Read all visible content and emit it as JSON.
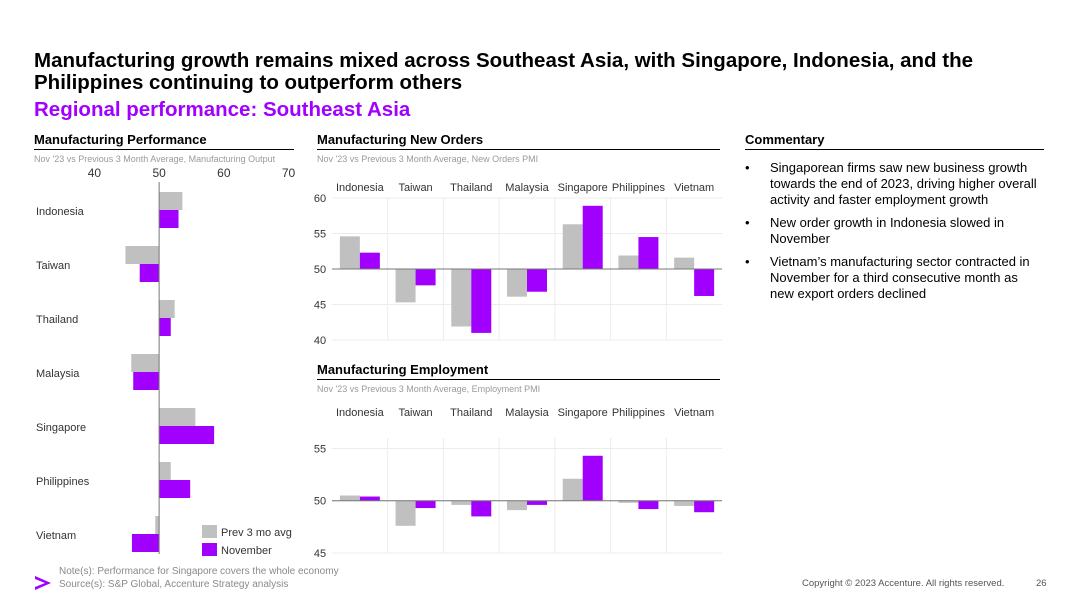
{
  "header": {
    "title": "Manufacturing growth remains mixed across Southeast Asia, with Singapore, Indonesia, and the Philippines continuing to outperform others",
    "subtitle": "Regional performance: Southeast Asia"
  },
  "colors": {
    "accent": "#a100ff",
    "prev": "#c0c0c0",
    "nov": "#a100ff"
  },
  "chart_data": [
    {
      "id": "performance",
      "type": "bar",
      "orientation": "horizontal",
      "title": "Manufacturing Performance",
      "subtitle": "Nov '23 vs Previous 3 Month Average, Manufacturing Output",
      "categories": [
        "Indonesia",
        "Taiwan",
        "Thailand",
        "Malaysia",
        "Singapore",
        "Philippines",
        "Vietnam"
      ],
      "baseline": 50,
      "xlim": [
        37,
        71
      ],
      "ticks": [
        40,
        50,
        60,
        70
      ],
      "series": [
        {
          "name": "Prev 3 mo avg",
          "values": [
            53.6,
            44.8,
            52.4,
            45.7,
            55.6,
            51.8,
            49.4
          ]
        },
        {
          "name": "November",
          "values": [
            53.0,
            47.0,
            51.8,
            46.0,
            58.5,
            54.8,
            45.8
          ]
        }
      ],
      "legend": [
        "Prev 3 mo avg",
        "November"
      ]
    },
    {
      "id": "new_orders",
      "type": "bar",
      "title": "Manufacturing New Orders",
      "subtitle": "Nov '23 vs Previous 3 Month Average, New Orders PMI",
      "categories": [
        "Indonesia",
        "Taiwan",
        "Thailand",
        "Malaysia",
        "Singapore",
        "Philippines",
        "Vietnam"
      ],
      "baseline": 50,
      "ylim": [
        40,
        60
      ],
      "ticks": [
        40,
        45,
        50,
        55,
        60
      ],
      "series": [
        {
          "name": "Prev 3 mo avg",
          "values": [
            54.6,
            45.3,
            41.9,
            46.1,
            56.3,
            51.9,
            51.6
          ]
        },
        {
          "name": "November",
          "values": [
            52.3,
            47.7,
            41.0,
            46.8,
            58.9,
            54.5,
            46.2
          ]
        }
      ]
    },
    {
      "id": "employment",
      "type": "bar",
      "title": "Manufacturing Employment",
      "subtitle": "Nov '23 vs Previous 3 Month Average, Employment PMI",
      "categories": [
        "Indonesia",
        "Taiwan",
        "Thailand",
        "Malaysia",
        "Singapore",
        "Philippines",
        "Vietnam"
      ],
      "baseline": 50,
      "ylim": [
        45,
        56
      ],
      "ticks": [
        45,
        50,
        55
      ],
      "series": [
        {
          "name": "Prev 3 mo avg",
          "values": [
            50.5,
            47.6,
            49.6,
            49.1,
            52.1,
            49.8,
            49.5
          ]
        },
        {
          "name": "November",
          "values": [
            50.4,
            49.3,
            48.5,
            49.6,
            54.3,
            49.2,
            48.9
          ]
        }
      ]
    }
  ],
  "commentary": {
    "heading": "Commentary",
    "bullet": "•",
    "items": [
      "Singaporean firms saw new business growth towards the end of 2023, driving higher overall activity and faster employment growth",
      "New order growth in Indonesia slowed in November",
      "Vietnam’s manufacturing sector contracted in November for a third consecutive month as new export orders declined"
    ]
  },
  "footer": {
    "notes": "Note(s): Performance for Singapore covers the whole economy",
    "sources": "Source(s): S&P Global, Accenture Strategy analysis",
    "copyright": "Copyright © 2023 Accenture. All rights reserved.",
    "page_number": "26",
    "logo_icon": "accenture-chevron-icon"
  }
}
